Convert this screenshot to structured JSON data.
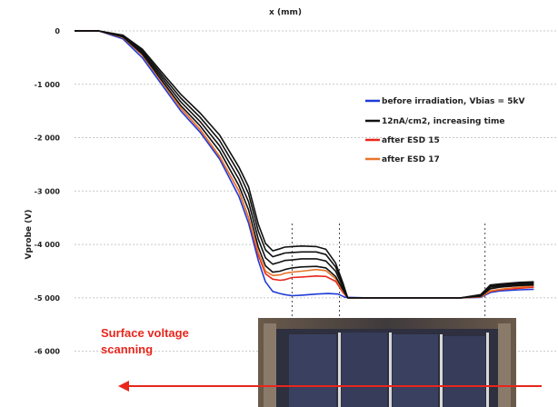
{
  "chart_data": {
    "type": "line",
    "title": "x (mm)",
    "xlabel": "",
    "ylabel": "Vprobe (V)",
    "xlim": [
      0,
      100
    ],
    "ylim": [
      -6500,
      0
    ],
    "y_ticks": [
      0,
      -1000,
      -2000,
      -3000,
      -4000,
      -5000,
      -6000
    ],
    "y_tick_labels": [
      "0",
      "-1 000",
      "-2 000",
      "-3 000",
      "-4 000",
      "-5 000",
      "-6 000"
    ],
    "grid": true,
    "legend_position": "right",
    "colors": {
      "before": "#1f3bd6",
      "increasing": "#111111",
      "esd15": "#e8261c",
      "esd17": "#e8742a",
      "arrow": "#e8261c",
      "dashed": "#444444"
    },
    "legend": [
      "before irradiation, Vbias = 5kV",
      "12nA/cm2, increasing time",
      "after ESD 15",
      "after ESD 17"
    ],
    "annotation": {
      "line1": "Surface voltage",
      "line2": "scanning"
    },
    "markers_x": [
      45,
      54.8,
      84.9
    ],
    "series": [
      {
        "name": "before irradiation, Vbias = 5kV",
        "color_key": "before",
        "x": [
          0,
          5,
          10,
          14,
          18,
          22,
          26,
          30,
          34,
          36,
          38,
          39.5,
          41,
          42.5,
          43.5,
          45,
          47,
          50,
          52.5,
          54.5,
          56,
          60,
          70,
          80,
          84,
          86,
          88,
          92,
          95
        ],
        "y": [
          0,
          0,
          -150,
          -500,
          -1000,
          -1500,
          -1900,
          -2400,
          -3100,
          -3600,
          -4300,
          -4700,
          -4880,
          -4920,
          -4940,
          -4960,
          -4950,
          -4930,
          -4920,
          -4930,
          -4990,
          -5000,
          -5000,
          -5000,
          -4990,
          -4900,
          -4870,
          -4850,
          -4840
        ]
      },
      {
        "name": "after ESD 15",
        "color_key": "esd15",
        "x": [
          0,
          5,
          10,
          14,
          18,
          22,
          26,
          30,
          34,
          36,
          38,
          39.5,
          41,
          42.5,
          43.5,
          45,
          47,
          50,
          52,
          54,
          55.5,
          56.5,
          60,
          70,
          80,
          84,
          86,
          88,
          92,
          95
        ],
        "y": [
          0,
          0,
          -120,
          -450,
          -950,
          -1450,
          -1850,
          -2350,
          -3000,
          -3500,
          -4200,
          -4550,
          -4650,
          -4670,
          -4660,
          -4620,
          -4610,
          -4590,
          -4600,
          -4690,
          -4900,
          -5000,
          -5000,
          -5000,
          -5000,
          -4980,
          -4880,
          -4850,
          -4820,
          -4800
        ]
      },
      {
        "name": "after ESD 17",
        "color_key": "esd17",
        "x": [
          0,
          5,
          10,
          14,
          18,
          22,
          26,
          30,
          34,
          36,
          38,
          39.5,
          41,
          42.5,
          43.5,
          45,
          47,
          50,
          52,
          54,
          55.5,
          56.5,
          60,
          70,
          80,
          84,
          86,
          88,
          92,
          95
        ],
        "y": [
          0,
          0,
          -120,
          -450,
          -950,
          -1450,
          -1850,
          -2350,
          -3000,
          -3500,
          -4150,
          -4500,
          -4580,
          -4570,
          -4540,
          -4520,
          -4500,
          -4470,
          -4490,
          -4640,
          -4880,
          -5000,
          -5000,
          -5000,
          -5000,
          -4980,
          -4870,
          -4840,
          -4800,
          -4780
        ]
      },
      {
        "name": "12nA/cm2, increasing time",
        "color_key": "increasing",
        "x": [
          0,
          5,
          10,
          14,
          18,
          22,
          26,
          30,
          34,
          36,
          38,
          39.5,
          41,
          42.5,
          43.5,
          45,
          47,
          50,
          52,
          54,
          55.5,
          56.5,
          60,
          70,
          80,
          84,
          86,
          88,
          92,
          95
        ],
        "y": [
          0,
          0,
          -110,
          -430,
          -920,
          -1400,
          -1780,
          -2250,
          -2900,
          -3350,
          -4050,
          -4400,
          -4520,
          -4500,
          -4470,
          -4440,
          -4420,
          -4410,
          -4440,
          -4600,
          -4850,
          -5000,
          -5000,
          -5000,
          -5000,
          -4970,
          -4830,
          -4800,
          -4770,
          -4760
        ]
      },
      {
        "name": "12nA/cm2, increasing time",
        "color_key": "increasing",
        "x": [
          0,
          5,
          10,
          14,
          18,
          22,
          26,
          30,
          34,
          36,
          38,
          39.5,
          41,
          42.5,
          43.5,
          45,
          47,
          50,
          52,
          54,
          55.5,
          56.5,
          60,
          70,
          80,
          84,
          86,
          88,
          92,
          95
        ],
        "y": [
          0,
          0,
          -100,
          -400,
          -870,
          -1330,
          -1700,
          -2150,
          -2780,
          -3200,
          -3900,
          -4250,
          -4370,
          -4330,
          -4300,
          -4290,
          -4270,
          -4270,
          -4310,
          -4500,
          -4800,
          -5000,
          -5000,
          -5000,
          -5000,
          -4960,
          -4800,
          -4780,
          -4750,
          -4740
        ]
      },
      {
        "name": "12nA/cm2, increasing time",
        "color_key": "increasing",
        "x": [
          0,
          5,
          10,
          14,
          18,
          22,
          26,
          30,
          34,
          36,
          38,
          39.5,
          41,
          42.5,
          43.5,
          45,
          47,
          50,
          52,
          54,
          55.5,
          56.5,
          60,
          70,
          80,
          84,
          86,
          88,
          92,
          95
        ],
        "y": [
          0,
          0,
          -90,
          -370,
          -820,
          -1260,
          -1620,
          -2050,
          -2660,
          -3050,
          -3750,
          -4100,
          -4230,
          -4190,
          -4160,
          -4150,
          -4140,
          -4140,
          -4190,
          -4420,
          -4760,
          -5000,
          -5000,
          -5000,
          -5000,
          -4950,
          -4780,
          -4760,
          -4730,
          -4720
        ]
      },
      {
        "name": "12nA/cm2, increasing time",
        "color_key": "increasing",
        "x": [
          0,
          5,
          10,
          14,
          18,
          22,
          26,
          30,
          34,
          36,
          38,
          39.5,
          41,
          42.5,
          43.5,
          45,
          47,
          50,
          52,
          54,
          55.5,
          56.5,
          60,
          70,
          80,
          84,
          86,
          88,
          92,
          95
        ],
        "y": [
          0,
          0,
          -80,
          -340,
          -770,
          -1190,
          -1540,
          -1950,
          -2550,
          -2920,
          -3620,
          -3980,
          -4120,
          -4080,
          -4050,
          -4040,
          -4030,
          -4040,
          -4090,
          -4350,
          -4720,
          -5000,
          -5000,
          -5000,
          -5000,
          -4940,
          -4760,
          -4740,
          -4710,
          -4700
        ]
      }
    ]
  }
}
